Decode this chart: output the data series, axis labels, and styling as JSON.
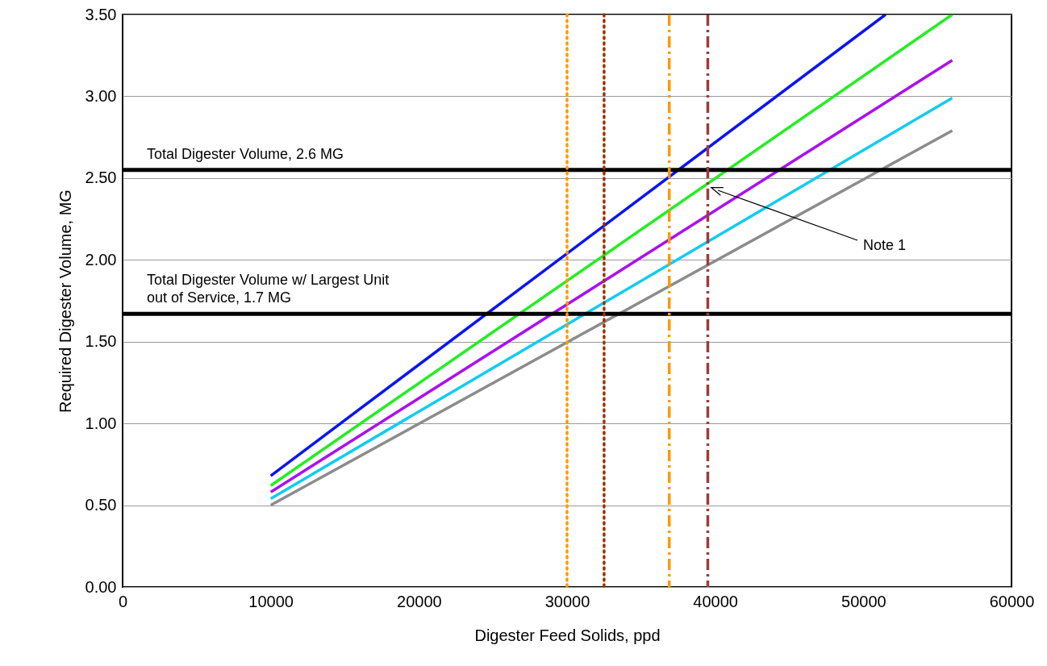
{
  "chart_data": {
    "type": "line",
    "xlabel": "Digester Feed Solids, ppd",
    "ylabel": "Required Digester Volume, MG",
    "xlim": [
      0,
      60000
    ],
    "xticks": [
      0,
      10000,
      20000,
      30000,
      40000,
      50000,
      60000
    ],
    "ylim": [
      0,
      3.5
    ],
    "yticks": [
      {
        "value": 0,
        "label": "0.00"
      },
      {
        "value": 0.5,
        "label": "0.50"
      },
      {
        "value": 1,
        "label": "1.00"
      },
      {
        "value": 1.5,
        "label": "1.50"
      },
      {
        "value": 2,
        "label": "2.00"
      },
      {
        "value": 2.5,
        "label": "2.50"
      },
      {
        "value": 3,
        "label": "3.00"
      },
      {
        "value": 3.5,
        "label": "3.50"
      }
    ],
    "grid": "y",
    "series": [
      {
        "color": "#0a14f0",
        "x": [
          10000,
          51500
        ],
        "values": [
          0.68,
          3.5
        ]
      },
      {
        "color": "#22ee22",
        "x": [
          10000,
          56000
        ],
        "values": [
          0.62,
          3.5
        ]
      },
      {
        "color": "#aa11ee",
        "x": [
          10000,
          56000
        ],
        "values": [
          0.58,
          3.22
        ]
      },
      {
        "color": "#11ccf0",
        "x": [
          10000,
          56000
        ],
        "values": [
          0.54,
          2.99
        ]
      },
      {
        "color": "#8c8c8c",
        "x": [
          10000,
          56000
        ],
        "values": [
          0.5,
          2.79
        ]
      }
    ],
    "ref_lines": [
      {
        "axis": "y",
        "value": 2.55,
        "label": "Total Digester Volume, 2.6 MG",
        "color": "#000000",
        "line_style": "solid"
      },
      {
        "axis": "y",
        "value": 1.67,
        "label": "Total Digester Volume w/ Largest Unit\nout of Service, 1.7 MG",
        "color": "#000000",
        "line_style": "solid"
      },
      {
        "axis": "x",
        "value": 30000,
        "color": "#ff9900",
        "line_style": "dotted"
      },
      {
        "axis": "x",
        "value": 32500,
        "color": "#993300",
        "line_style": "dotted"
      },
      {
        "axis": "x",
        "value": 36900,
        "color": "#ff9900",
        "line_style": "dashed"
      },
      {
        "axis": "x",
        "value": 39500,
        "color": "#a03a3a",
        "line_style": "dashed"
      }
    ],
    "annotations": [
      "Note 1"
    ]
  }
}
